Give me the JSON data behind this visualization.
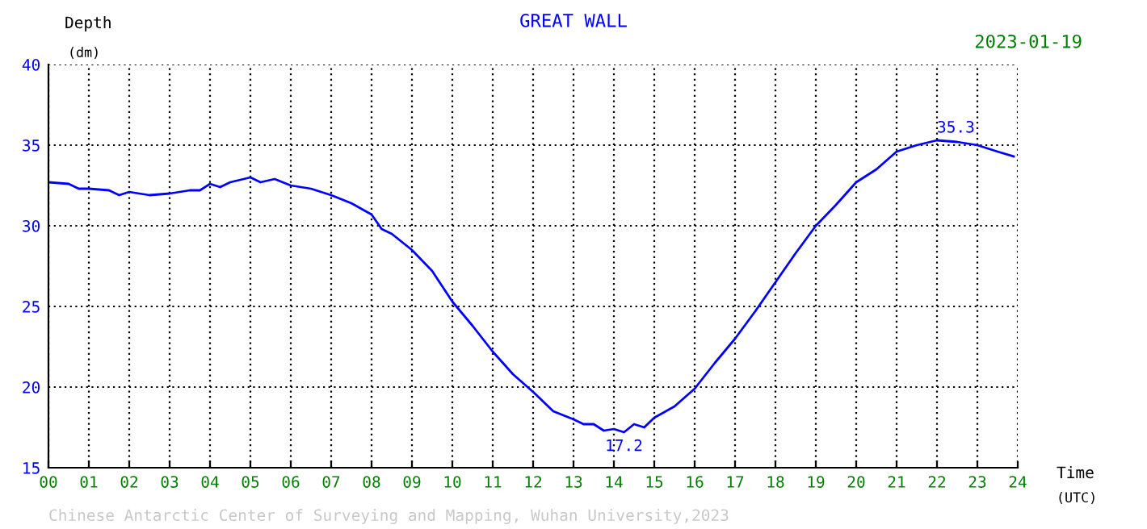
{
  "chart_data": {
    "type": "line",
    "title": "GREAT WALL",
    "ylabel": "Depth\n(dm)",
    "xlabel": "Time\n(UTC)",
    "series": [
      {
        "color": "#0000ff",
        "x": [
          0,
          0.5,
          0.75,
          1,
          1.5,
          1.75,
          2,
          2.5,
          3,
          3.5,
          3.75,
          4,
          4.25,
          4.5,
          5,
          5.25,
          5.6,
          6,
          6.5,
          7,
          7.5,
          8,
          8.25,
          8.5,
          9,
          9.5,
          10,
          10.5,
          11,
          11.5,
          12,
          12.5,
          13,
          13.25,
          13.5,
          13.75,
          14,
          14.25,
          14.5,
          14.75,
          15,
          15.5,
          16,
          16.5,
          17,
          17.5,
          18,
          18.5,
          19,
          19.5,
          20,
          20.5,
          21,
          21.5,
          22,
          22.5,
          23,
          23.5,
          23.9
        ],
        "values": [
          32.7,
          32.6,
          32.3,
          32.3,
          32.2,
          31.9,
          32.1,
          31.9,
          32.0,
          32.2,
          32.2,
          32.6,
          32.4,
          32.7,
          33.0,
          32.7,
          32.9,
          32.5,
          32.3,
          31.9,
          31.4,
          30.7,
          29.8,
          29.5,
          28.5,
          27.2,
          25.3,
          23.8,
          22.2,
          20.8,
          19.7,
          18.5,
          18.0,
          17.7,
          17.7,
          17.3,
          17.4,
          17.2,
          17.7,
          17.5,
          18.1,
          18.8,
          19.9,
          21.5,
          23.0,
          24.7,
          26.5,
          28.3,
          30.0,
          31.3,
          32.7,
          33.5,
          34.6,
          35.0,
          35.3,
          35.2,
          35.0,
          34.6,
          34.3
        ]
      }
    ],
    "xlim": [
      0,
      24
    ],
    "ylim": [
      15,
      40
    ],
    "xticks": [
      {
        "value": 0,
        "label": "00"
      },
      {
        "value": 1,
        "label": "01"
      },
      {
        "value": 2,
        "label": "02"
      },
      {
        "value": 3,
        "label": "03"
      },
      {
        "value": 4,
        "label": "04"
      },
      {
        "value": 5,
        "label": "05"
      },
      {
        "value": 6,
        "label": "06"
      },
      {
        "value": 7,
        "label": "07"
      },
      {
        "value": 8,
        "label": "08"
      },
      {
        "value": 9,
        "label": "09"
      },
      {
        "value": 10,
        "label": "10"
      },
      {
        "value": 11,
        "label": "11"
      },
      {
        "value": 12,
        "label": "12"
      },
      {
        "value": 13,
        "label": "13"
      },
      {
        "value": 14,
        "label": "14"
      },
      {
        "value": 15,
        "label": "15"
      },
      {
        "value": 16,
        "label": "16"
      },
      {
        "value": 17,
        "label": "17"
      },
      {
        "value": 18,
        "label": "18"
      },
      {
        "value": 19,
        "label": "19"
      },
      {
        "value": 20,
        "label": "20"
      },
      {
        "value": 21,
        "label": "21"
      },
      {
        "value": 22,
        "label": "22"
      },
      {
        "value": 23,
        "label": "23"
      },
      {
        "value": 24,
        "label": "24"
      }
    ],
    "yticks": [
      15,
      20,
      25,
      30,
      35,
      40
    ],
    "grid": true,
    "line_style": "solid",
    "marker": "none",
    "annotations": [
      {
        "text": "17.2",
        "x": 14.25,
        "y": 17.2
      },
      {
        "text": "35.3",
        "x": 22,
        "y": 35.3
      },
      "2023-01-19",
      "Chinese Antarctic Center of Surveying and Mapping, Wuhan University,2023"
    ]
  }
}
